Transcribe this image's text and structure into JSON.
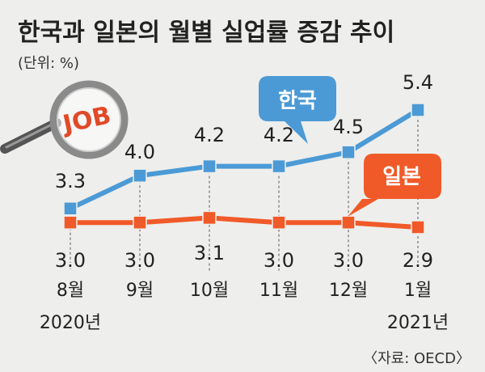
{
  "chart_data": {
    "type": "line",
    "title": "한국과 일본의 월별 실업률 증감 추이",
    "unit_note": "(단위: %)",
    "categories": [
      "8월",
      "9월",
      "10월",
      "11월",
      "12월",
      "1월"
    ],
    "year_labels": [
      "2020년",
      "2021년"
    ],
    "series": [
      {
        "name": "한국",
        "values": [
          3.3,
          4.0,
          4.2,
          4.2,
          4.5,
          5.4
        ],
        "labels": [
          "3.3",
          "4.0",
          "4.2",
          "4.2",
          "4.5",
          "5.4"
        ],
        "color": "#4b9ad6"
      },
      {
        "name": "일본",
        "values": [
          3.0,
          3.0,
          3.1,
          3.0,
          3.0,
          2.9
        ],
        "labels": [
          "3.0",
          "3.0",
          "3.1",
          "3.0",
          "3.0",
          "2.9"
        ],
        "color": "#f05a28"
      }
    ],
    "ylim": [
      2.5,
      5.6
    ],
    "source": "〈자료: OECD〉",
    "logo_text": "JOB",
    "colors": {
      "background": "#eeeeec",
      "text": "#222222",
      "grid": "#555555"
    },
    "icon": "magnifier-icon"
  }
}
